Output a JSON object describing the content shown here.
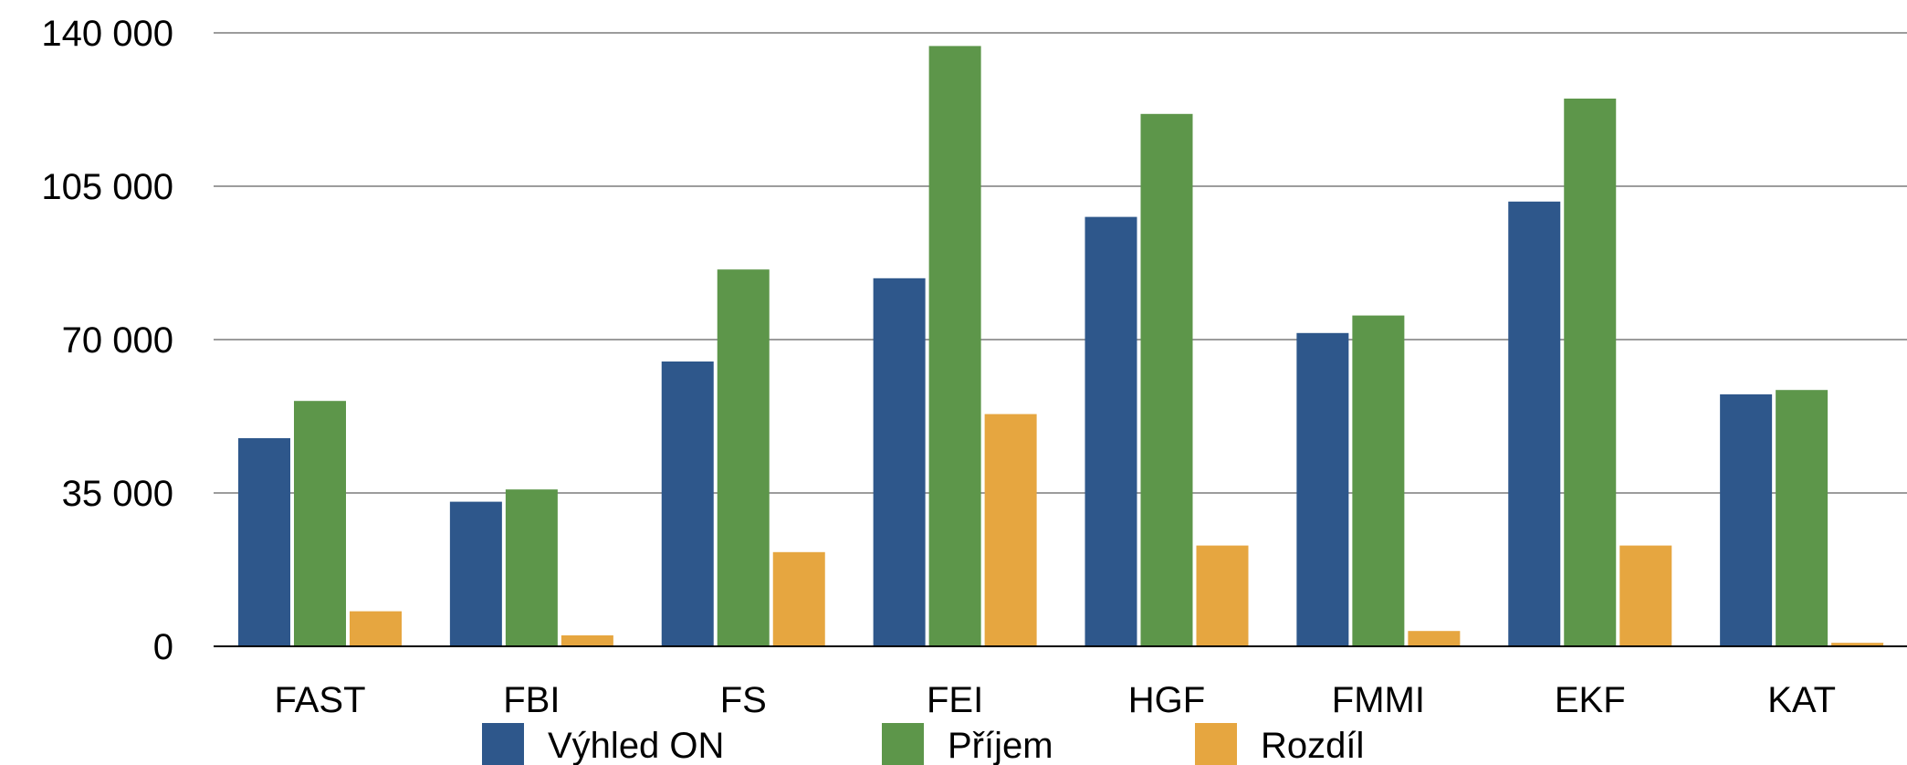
{
  "chart_data": {
    "type": "bar",
    "title": "",
    "xlabel": "",
    "ylabel": "",
    "categories": [
      "FAST",
      "FBI",
      "FS",
      "FEI",
      "HGF",
      "FMMI",
      "EKF",
      "KAT"
    ],
    "series": [
      {
        "name": "Výhled ON",
        "color": "#2e578b",
        "values": [
          47500,
          33000,
          65000,
          84000,
          98000,
          71500,
          101500,
          57500
        ]
      },
      {
        "name": "Příjem",
        "color": "#5d964a",
        "values": [
          56000,
          35800,
          86000,
          137000,
          121500,
          75500,
          125000,
          58500
        ]
      },
      {
        "name": "Rozdíl",
        "color": "#e6a640",
        "values": [
          8000,
          2500,
          21500,
          53000,
          23000,
          3500,
          23000,
          800
        ]
      }
    ],
    "ylim": [
      0,
      140000
    ],
    "yticks": [
      0,
      35000,
      70000,
      105000,
      140000
    ],
    "ytick_labels": [
      "0",
      "35 000",
      "70 000",
      "105 000",
      "140 000"
    ],
    "grid": true,
    "legend_position": "bottom"
  }
}
